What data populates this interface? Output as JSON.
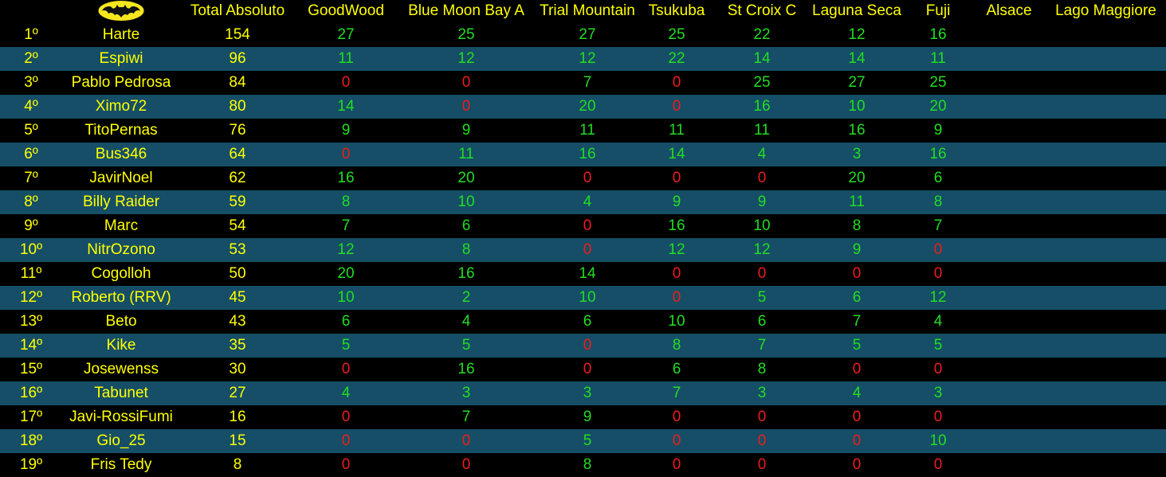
{
  "header": {
    "logo_icon": "bat-logo-icon",
    "total_label": "Total Absoluto",
    "races": [
      "GoodWood",
      "Blue Moon Bay A",
      "Trial Mountain",
      "Tsukuba",
      "St Croix C",
      "Laguna Seca",
      "Fuji",
      "Alsace",
      "Lago Maggiore"
    ]
  },
  "colors": {
    "row_alt": "#154e66",
    "row_base": "#000000",
    "text_yellow": "#ffff00",
    "score_positive": "#22dd22",
    "score_zero": "#ee1c1c",
    "logo_yellow": "#f5e61e"
  },
  "rows": [
    {
      "pos": "1º",
      "name": "Harte",
      "total": "154",
      "scores": [
        "27",
        "25",
        "27",
        "25",
        "22",
        "12",
        "16"
      ]
    },
    {
      "pos": "2º",
      "name": "Espiwi",
      "total": "96",
      "scores": [
        "11",
        "12",
        "12",
        "22",
        "14",
        "14",
        "11"
      ]
    },
    {
      "pos": "3º",
      "name": "Pablo Pedrosa",
      "total": "84",
      "scores": [
        "0",
        "0",
        "7",
        "0",
        "25",
        "27",
        "25"
      ]
    },
    {
      "pos": "4º",
      "name": "Ximo72",
      "total": "80",
      "scores": [
        "14",
        "0",
        "20",
        "0",
        "16",
        "10",
        "20"
      ]
    },
    {
      "pos": "5º",
      "name": "TitoPernas",
      "total": "76",
      "scores": [
        "9",
        "9",
        "11",
        "11",
        "11",
        "16",
        "9"
      ]
    },
    {
      "pos": "6º",
      "name": "Bus346",
      "total": "64",
      "scores": [
        "0",
        "11",
        "16",
        "14",
        "4",
        "3",
        "16"
      ]
    },
    {
      "pos": "7º",
      "name": "JavirNoel",
      "total": "62",
      "scores": [
        "16",
        "20",
        "0",
        "0",
        "0",
        "20",
        "6"
      ]
    },
    {
      "pos": "8º",
      "name": "Billy Raider",
      "total": "59",
      "scores": [
        "8",
        "10",
        "4",
        "9",
        "9",
        "11",
        "8"
      ]
    },
    {
      "pos": "9º",
      "name": "Marc",
      "total": "54",
      "scores": [
        "7",
        "6",
        "0",
        "16",
        "10",
        "8",
        "7"
      ]
    },
    {
      "pos": "10º",
      "name": "NitrOzono",
      "total": "53",
      "scores": [
        "12",
        "8",
        "0",
        "12",
        "12",
        "9",
        "0"
      ]
    },
    {
      "pos": "11º",
      "name": "Cogolloh",
      "total": "50",
      "scores": [
        "20",
        "16",
        "14",
        "0",
        "0",
        "0",
        "0"
      ]
    },
    {
      "pos": "12º",
      "name": "Roberto (RRV)",
      "total": "45",
      "scores": [
        "10",
        "2",
        "10",
        "0",
        "5",
        "6",
        "12"
      ]
    },
    {
      "pos": "13º",
      "name": "Beto",
      "total": "43",
      "scores": [
        "6",
        "4",
        "6",
        "10",
        "6",
        "7",
        "4"
      ]
    },
    {
      "pos": "14º",
      "name": "Kike",
      "total": "35",
      "scores": [
        "5",
        "5",
        "0",
        "8",
        "7",
        "5",
        "5"
      ]
    },
    {
      "pos": "15º",
      "name": "Josewenss",
      "total": "30",
      "scores": [
        "0",
        "16",
        "0",
        "6",
        "8",
        "0",
        "0"
      ]
    },
    {
      "pos": "16º",
      "name": "Tabunet",
      "total": "27",
      "scores": [
        "4",
        "3",
        "3",
        "7",
        "3",
        "4",
        "3"
      ]
    },
    {
      "pos": "17º",
      "name": "Javi-RossiFumi",
      "total": "16",
      "scores": [
        "0",
        "7",
        "9",
        "0",
        "0",
        "0",
        "0"
      ]
    },
    {
      "pos": "18º",
      "name": "Gio_25",
      "total": "15",
      "scores": [
        "0",
        "0",
        "5",
        "0",
        "0",
        "0",
        "10"
      ]
    },
    {
      "pos": "19º",
      "name": "Fris Tedy",
      "total": "8",
      "scores": [
        "0",
        "0",
        "8",
        "0",
        "0",
        "0",
        "0"
      ]
    }
  ]
}
